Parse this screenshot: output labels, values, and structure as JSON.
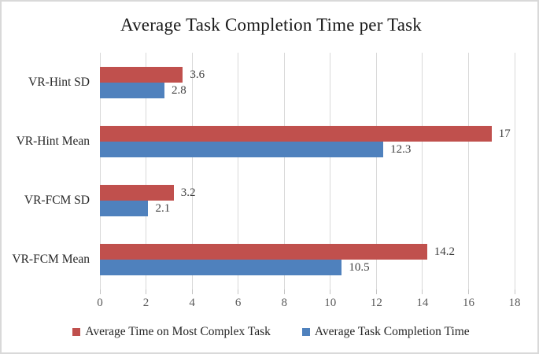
{
  "window": {
    "background": "#ffffff",
    "border_color": "#d9d9d9"
  },
  "chart_data": {
    "type": "bar",
    "orientation": "horizontal",
    "title": "Average Task Completion Time per Task",
    "categories": [
      "VR-Hint SD",
      "VR-Hint Mean",
      "VR-FCM SD",
      "VR-FCM Mean"
    ],
    "category_order": "top-to-bottom",
    "series": [
      {
        "name": "Average Time on Most Complex Task",
        "color": "#C0504D",
        "values": [
          3.6,
          17,
          3.2,
          14.2
        ]
      },
      {
        "name": "Average Task Completion Time",
        "color": "#4F81BD",
        "values": [
          2.8,
          12.3,
          2.1,
          10.5
        ]
      }
    ],
    "x_ticks": [
      0,
      2,
      4,
      6,
      8,
      10,
      12,
      14,
      16,
      18
    ],
    "xlim": [
      0,
      18
    ],
    "grid": "vertical-only",
    "legend_position": "bottom",
    "data_labels": true
  },
  "colors": {
    "gridline": "#D9D9D9",
    "tickmark": "#C3C3C3",
    "axis_text": "#595959",
    "value_text": "#404040",
    "label_text": "#262626"
  }
}
